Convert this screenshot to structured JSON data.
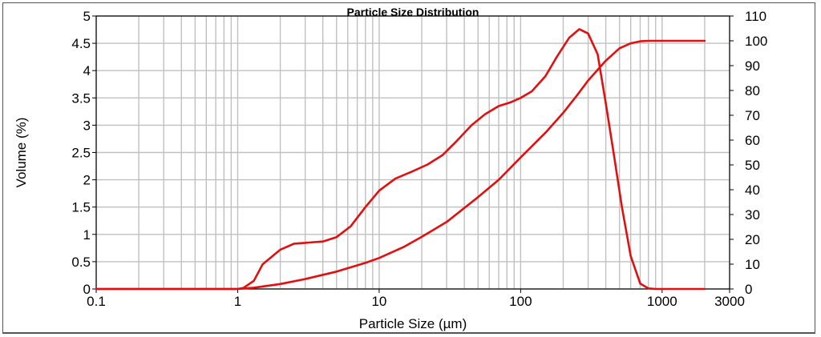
{
  "chart_data": {
    "type": "line",
    "title": "Particle Size Distribution",
    "xlabel": "Particle Size (µm)",
    "ylabel": "Volume (%)",
    "xscale": "log",
    "xlim": [
      0.1,
      3000
    ],
    "ylim": [
      0,
      5
    ],
    "y2lim": [
      0,
      110
    ],
    "grid": true,
    "x_ticks": [
      "0.1",
      "1",
      "10",
      "100",
      "1000",
      "3000"
    ],
    "y_ticks": [
      "0",
      "0.5",
      "1",
      "1.5",
      "2",
      "2.5",
      "3",
      "3.5",
      "4",
      "4.5",
      "5"
    ],
    "y2_ticks": [
      "0",
      "10",
      "20",
      "30",
      "40",
      "50",
      "60",
      "70",
      "80",
      "90",
      "100",
      "110"
    ],
    "colors": {
      "series": "#e01010",
      "grid": "#c0c0c0",
      "axis": "#000000"
    },
    "series": [
      {
        "axis": "left",
        "points": [
          [
            0.1,
            0
          ],
          [
            1.0,
            0
          ],
          [
            1.1,
            0.02
          ],
          [
            1.3,
            0.15
          ],
          [
            1.5,
            0.45
          ],
          [
            2.0,
            0.72
          ],
          [
            2.5,
            0.83
          ],
          [
            3.2,
            0.85
          ],
          [
            4.0,
            0.87
          ],
          [
            5.0,
            0.95
          ],
          [
            6.3,
            1.15
          ],
          [
            8.0,
            1.5
          ],
          [
            10,
            1.8
          ],
          [
            13,
            2.02
          ],
          [
            17,
            2.15
          ],
          [
            22,
            2.28
          ],
          [
            28,
            2.45
          ],
          [
            35,
            2.7
          ],
          [
            45,
            3.0
          ],
          [
            56,
            3.2
          ],
          [
            70,
            3.35
          ],
          [
            85,
            3.42
          ],
          [
            100,
            3.5
          ],
          [
            120,
            3.62
          ],
          [
            150,
            3.9
          ],
          [
            180,
            4.25
          ],
          [
            220,
            4.6
          ],
          [
            260,
            4.76
          ],
          [
            300,
            4.68
          ],
          [
            350,
            4.3
          ],
          [
            400,
            3.4
          ],
          [
            460,
            2.4
          ],
          [
            520,
            1.5
          ],
          [
            600,
            0.6
          ],
          [
            700,
            0.1
          ],
          [
            800,
            0.01
          ],
          [
            900,
            0
          ],
          [
            2000,
            0
          ]
        ]
      },
      {
        "axis": "right",
        "points": [
          [
            0.1,
            0
          ],
          [
            1.0,
            0
          ],
          [
            1.3,
            0.5
          ],
          [
            2.0,
            2
          ],
          [
            3.0,
            4
          ],
          [
            5.0,
            7
          ],
          [
            8.0,
            10.5
          ],
          [
            10,
            12.5
          ],
          [
            15,
            17
          ],
          [
            20,
            21
          ],
          [
            30,
            27
          ],
          [
            50,
            37
          ],
          [
            70,
            44
          ],
          [
            100,
            53
          ],
          [
            150,
            63
          ],
          [
            200,
            71
          ],
          [
            250,
            78
          ],
          [
            300,
            84
          ],
          [
            400,
            92
          ],
          [
            500,
            97
          ],
          [
            600,
            99
          ],
          [
            700,
            99.8
          ],
          [
            800,
            100
          ],
          [
            2000,
            100
          ]
        ]
      }
    ]
  }
}
